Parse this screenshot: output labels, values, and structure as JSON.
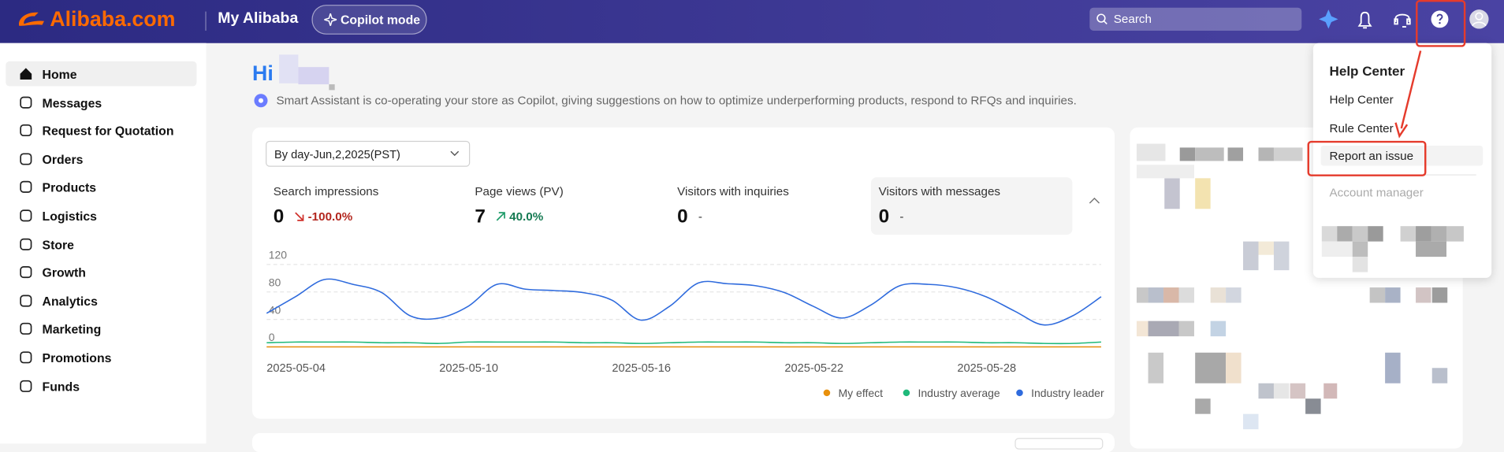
{
  "header": {
    "logo": "Alibaba.com",
    "title": "My Alibaba",
    "copilot": "Copilot mode",
    "search": "Search"
  },
  "sidebar": {
    "items": [
      "Home",
      "Messages",
      "Request for Quotation",
      "Orders",
      "Products",
      "Logistics",
      "Store",
      "Growth",
      "Analytics",
      "Marketing",
      "Promotions",
      "Funds"
    ]
  },
  "greeting": {
    "hi": "Hi",
    "message": "Smart Assistant is co-operating your store as Copilot, giving suggestions on how to optimize underperforming products, respond to RFQs and inquiries."
  },
  "date_selector": "By day-Jun,2,2025(PST)",
  "metrics": [
    {
      "label": "Search impressions",
      "value": 0,
      "change": "-100.0%"
    },
    {
      "label": "Page views (PV)",
      "value": 7,
      "change": "40.0%"
    },
    {
      "label": "Visitors with inquiries",
      "value": 0,
      "change": "-"
    },
    {
      "label": "Visitors with messages",
      "value": 0,
      "change": "-"
    }
  ],
  "help_menu": {
    "title": "Help Center",
    "items": [
      "Help Center",
      "Rule Center",
      "Report an issue"
    ],
    "disabled": "Account manager"
  },
  "chart_data": {
    "type": "line",
    "x": [
      "2025-05-04",
      null,
      null,
      null,
      null,
      null,
      "2025-05-10",
      null,
      null,
      null,
      null,
      null,
      "2025-05-16",
      null,
      null,
      null,
      null,
      null,
      "2025-05-22",
      null,
      null,
      null,
      null,
      null,
      "2025-05-28",
      null,
      null,
      null,
      null,
      null
    ],
    "series": [
      {
        "name": "My effect",
        "color": "#e8900c",
        "values": [
          0,
          0,
          0,
          0,
          0,
          0,
          0,
          0,
          0,
          0,
          0,
          0,
          0,
          0,
          0,
          0,
          0,
          0,
          0,
          0,
          0,
          0,
          0,
          0,
          0,
          0,
          0,
          0,
          0,
          0
        ]
      },
      {
        "name": "Industry average",
        "color": "#1fb97a",
        "values": [
          6,
          7,
          7,
          7,
          6,
          6,
          5,
          7,
          7,
          7,
          7,
          6,
          6,
          5,
          6,
          7,
          7,
          7,
          6,
          6,
          5,
          6,
          7,
          7,
          7,
          6,
          6,
          5,
          5,
          7
        ]
      },
      {
        "name": "Industry leader",
        "color": "#2f6bdd",
        "values": [
          49,
          73,
          98,
          91,
          79,
          45,
          42,
          59,
          91,
          84,
          82,
          79,
          68,
          39,
          59,
          93,
          92,
          89,
          79,
          59,
          42,
          61,
          89,
          91,
          86,
          73,
          52,
          32,
          45,
          73
        ]
      }
    ],
    "ylim": [
      0,
      120
    ],
    "yticks": [
      0,
      40,
      80,
      120
    ],
    "grid": true
  }
}
